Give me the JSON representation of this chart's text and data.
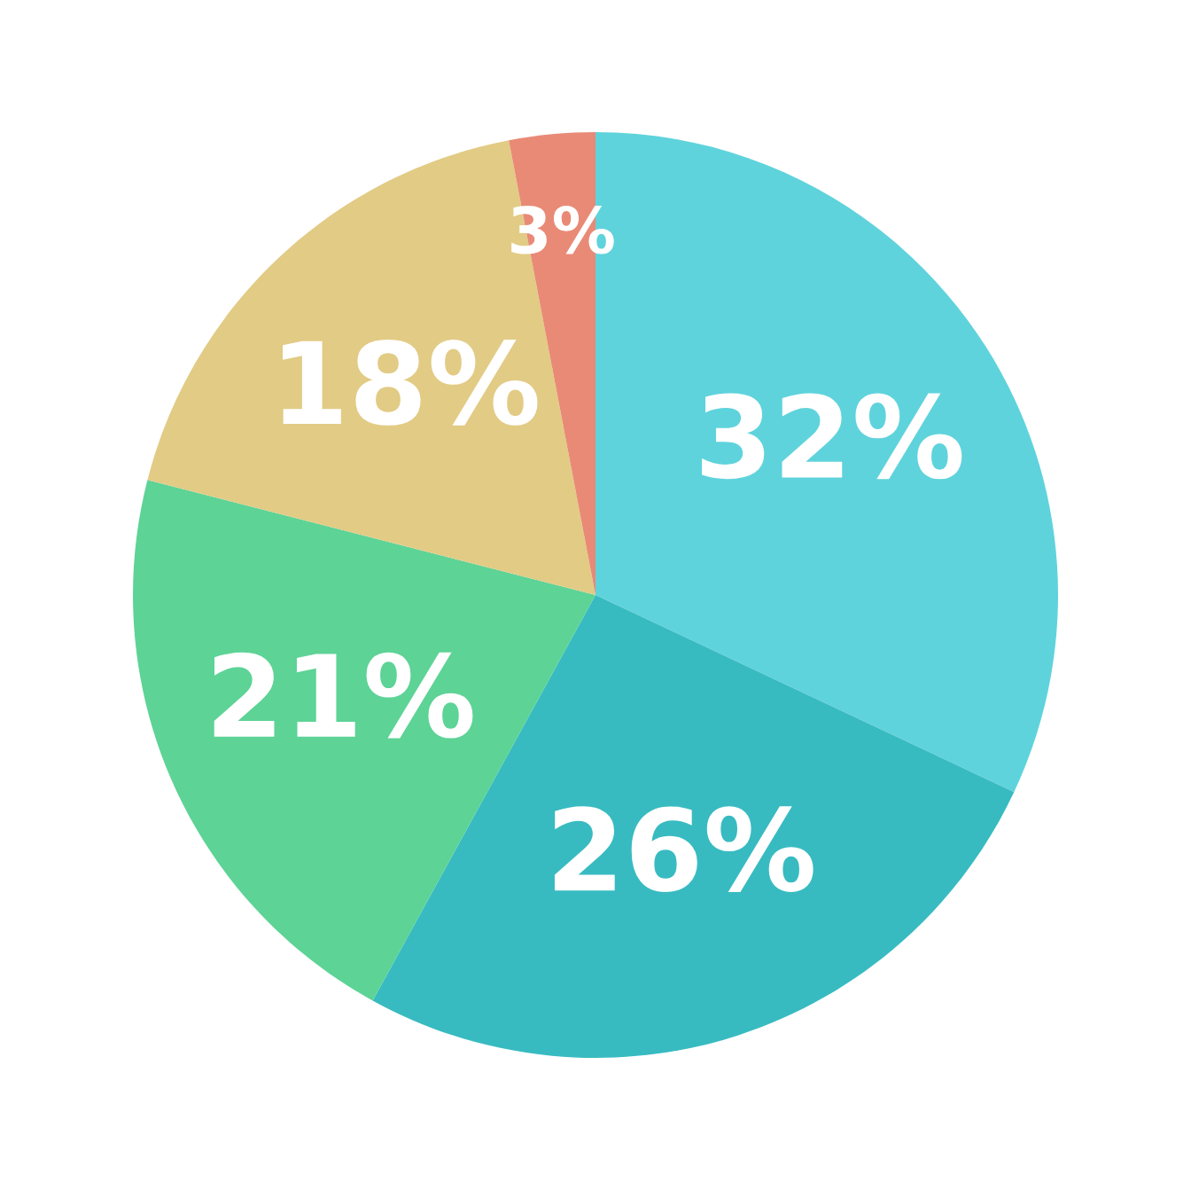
{
  "chart_data": {
    "type": "pie",
    "categories": [
      null,
      null,
      null,
      null,
      null
    ],
    "values": [
      32,
      26,
      21,
      18,
      3
    ],
    "colors": [
      "#5fd3dc",
      "#37bbc1",
      "#5dd396",
      "#e2cb85",
      "#e98a76"
    ],
    "value_labels": [
      "32%",
      "26%",
      "21%",
      "18%",
      "3%"
    ]
  }
}
